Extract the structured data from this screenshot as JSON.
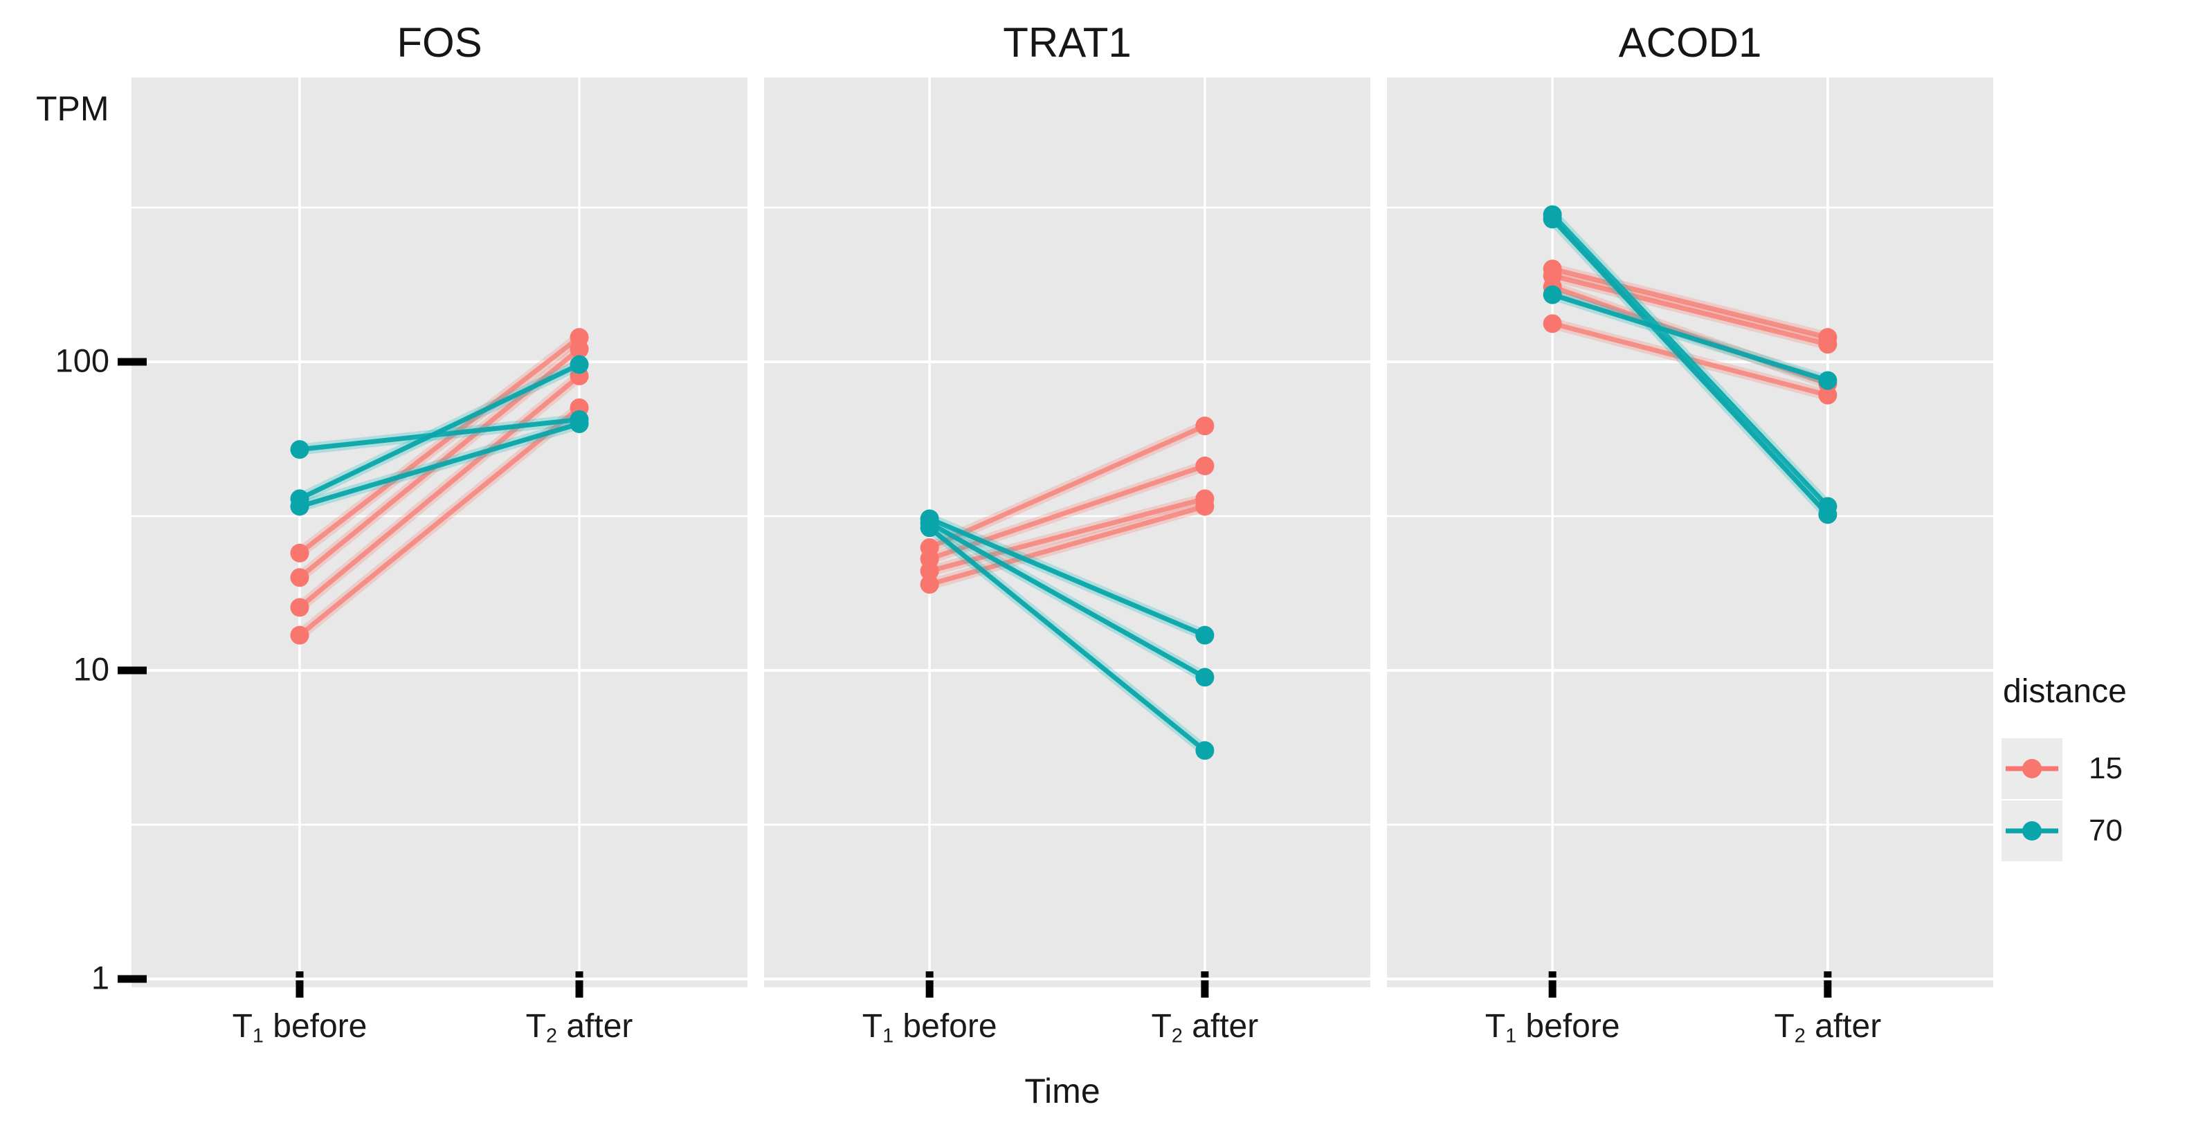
{
  "figure": {
    "y_axis_unit_label": "TPM",
    "x_axis_title": "Time",
    "y_tick_labels": [
      {
        "label": "100",
        "value": 100
      },
      {
        "label": "10",
        "value": 10
      },
      {
        "label": "1",
        "value": 1
      }
    ],
    "x_tick_labels": [
      {
        "main": "T",
        "sub": "1",
        "rest": " before"
      },
      {
        "main": "T",
        "sub": "2",
        "rest": " after"
      }
    ]
  },
  "legend": {
    "title": "distance",
    "entries": [
      {
        "label": "15",
        "color": "#f8766d"
      },
      {
        "label": "70",
        "color": "#0aa5aa"
      }
    ]
  },
  "chart_data": {
    "type": "line",
    "subtype": "paired-slope-chart",
    "y_scale": "log10",
    "ylabel": "TPM",
    "xlabel": "Time",
    "x_categories": [
      "T1 before",
      "T2 after"
    ],
    "ylim": [
      0.94,
      840
    ],
    "y_major_gridlines": [
      1,
      10,
      100
    ],
    "y_minor_gridlines": [
      3.1623,
      31.623,
      316.23
    ],
    "legend_title": "distance",
    "series_colors": {
      "15": "#f8766d",
      "70": "#0aa5aa"
    },
    "panels": [
      {
        "title": "FOS",
        "series": [
          {
            "distance": "15",
            "values": [
              13,
              71
            ]
          },
          {
            "distance": "15",
            "values": [
              16,
              90
            ]
          },
          {
            "distance": "15",
            "values": [
              20,
              110
            ]
          },
          {
            "distance": "15",
            "values": [
              24,
              120
            ]
          },
          {
            "distance": "70",
            "values": [
              52,
              65
            ]
          },
          {
            "distance": "70",
            "values": [
              36,
              98
            ]
          },
          {
            "distance": "70",
            "values": [
              34,
              63
            ]
          }
        ]
      },
      {
        "title": "TRAT1",
        "series": [
          {
            "distance": "15",
            "values": [
              25,
              62
            ]
          },
          {
            "distance": "15",
            "values": [
              23,
              46
            ]
          },
          {
            "distance": "15",
            "values": [
              21,
              36
            ]
          },
          {
            "distance": "15",
            "values": [
              19,
              34
            ]
          },
          {
            "distance": "70",
            "values": [
              31,
              13
            ]
          },
          {
            "distance": "70",
            "values": [
              30,
              9.5
            ]
          },
          {
            "distance": "70",
            "values": [
              29,
              5.5
            ]
          }
        ]
      },
      {
        "title": "ACOD1",
        "series": [
          {
            "distance": "15",
            "values": [
              200,
              120
            ]
          },
          {
            "distance": "15",
            "values": [
              190,
              114
            ]
          },
          {
            "distance": "15",
            "values": [
              175,
              85
            ]
          },
          {
            "distance": "15",
            "values": [
              133,
              78
            ]
          },
          {
            "distance": "70",
            "values": [
              300,
              34
            ]
          },
          {
            "distance": "70",
            "values": [
              290,
              32
            ]
          },
          {
            "distance": "70",
            "values": [
              165,
              87
            ]
          }
        ]
      }
    ]
  }
}
